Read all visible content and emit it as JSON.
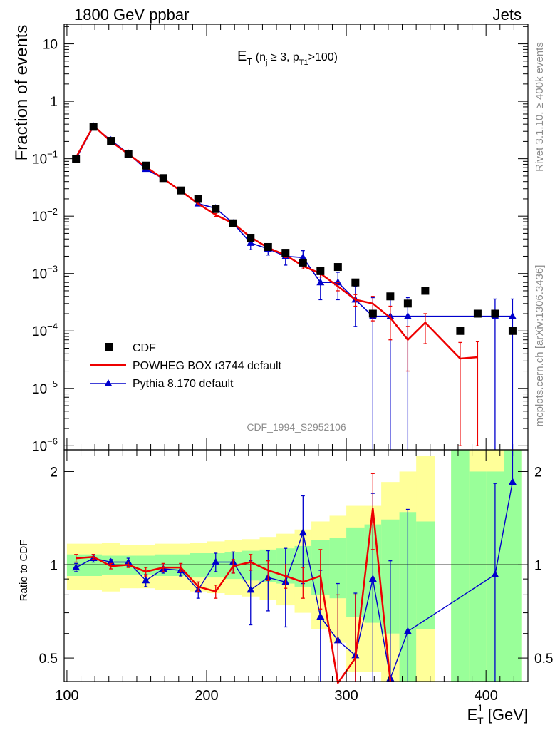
{
  "header": {
    "left": "1800 GeV ppbar",
    "right": "Jets",
    "side_top": "Rivet 3.1.10, ≥ 400k events",
    "side_bottom": "mcplots.cern.ch [arXiv:1306.3436]",
    "analysis_id": "CDF_1994_S2952106"
  },
  "colors": {
    "data": "#000000",
    "powheg": "#ee0000",
    "pythia": "#0000cc",
    "band_inner": "#99ff99",
    "band_outer": "#ffff99"
  },
  "chart_data": [
    {
      "type": "scatter",
      "title": "E_T (n_j ≥ 3, p_T1 >100)",
      "title_parts": {
        "main": "E",
        "sub": "T",
        "paren_open": " (n",
        "nj_sub": "j",
        "cond": " ≥ 3, p",
        "pt_sub": "T1",
        "tail": ">100)"
      },
      "ylabel": "Fraction of events",
      "yscale": "log",
      "ylim": [
        8.5e-07,
        22
      ],
      "xlim": [
        98,
        430
      ],
      "yticks": [
        {
          "v": 10,
          "base": "10",
          "exp": ""
        },
        {
          "v": 1,
          "base": "1",
          "exp": ""
        },
        {
          "v": 0.1,
          "base": "10",
          "exp": "−1"
        },
        {
          "v": 0.01,
          "base": "10",
          "exp": "−2"
        },
        {
          "v": 0.001,
          "base": "10",
          "exp": "−3"
        },
        {
          "v": 0.0001,
          "base": "10",
          "exp": "−4"
        },
        {
          "v": 1e-05,
          "base": "10",
          "exp": "−5"
        },
        {
          "v": 1e-06,
          "base": "10",
          "exp": "−6"
        }
      ],
      "legend": [
        {
          "key": "data",
          "label": "CDF"
        },
        {
          "key": "powheg",
          "label": "POWHEG BOX r3744 default"
        },
        {
          "key": "pythia",
          "label": "Pythia 8.170 default"
        }
      ],
      "series": [
        {
          "name": "CDF",
          "x": [
            106.5,
            119,
            131.5,
            144,
            156.5,
            169,
            181.5,
            194,
            206.5,
            219,
            231.5,
            244,
            256.5,
            269,
            281.5,
            294,
            306.5,
            319,
            331.5,
            344,
            356.5,
            381.5,
            394,
            406.5,
            419
          ],
          "y": [
            0.1,
            0.36,
            0.205,
            0.12,
            0.076,
            0.046,
            0.028,
            0.02,
            0.0133,
            0.0075,
            0.0042,
            0.0029,
            0.0023,
            0.00155,
            0.0011,
            0.0013,
            0.0007,
            0.0002,
            0.0004,
            0.0003,
            0.0005,
            0.0001,
            0.0002,
            0.0002,
            0.0001
          ]
        },
        {
          "name": "POWHEG BOX r3744 default",
          "x": [
            106.5,
            119,
            131.5,
            144,
            156.5,
            169,
            181.5,
            194,
            206.5,
            219,
            231.5,
            244,
            256.5,
            269,
            281.5,
            294,
            306.5,
            319,
            331.5,
            344,
            356.5,
            381.5,
            394
          ],
          "y": [
            0.105,
            0.375,
            0.2,
            0.12,
            0.072,
            0.045,
            0.0275,
            0.0165,
            0.0105,
            0.0075,
            0.0043,
            0.0028,
            0.0021,
            0.00135,
            0.001,
            0.0006,
            0.00035,
            0.0003,
            0.00017,
            7e-05,
            0.00014,
            3.3e-05,
            3.5e-05
          ],
          "err_lo": [
            0.003,
            0.005,
            0.004,
            0.003,
            0.002,
            0.0015,
            0.001,
            0.0008,
            0.0006,
            0.0004,
            0.0003,
            0.00025,
            0.0002,
            0.00015,
            0.00013,
            0.0001,
            8e-05,
            0.00015,
            0.0001,
            5e-05,
            8e-05,
            3.2e-05,
            3.4e-05
          ],
          "err_hi": [
            0.003,
            0.005,
            0.004,
            0.003,
            0.002,
            0.0015,
            0.001,
            0.0008,
            0.0006,
            0.0004,
            0.0003,
            0.00025,
            0.0002,
            0.00015,
            0.00013,
            0.0001,
            8e-05,
            0.0001,
            0.0001,
            5e-05,
            6e-05,
            3e-05,
            3e-05
          ]
        },
        {
          "name": "Pythia 8.170 default",
          "x": [
            106.5,
            119,
            131.5,
            144,
            156.5,
            169,
            181.5,
            194,
            206.5,
            219,
            231.5,
            244,
            256.5,
            269,
            281.5,
            294,
            306.5,
            319,
            331.5,
            344,
            406.5,
            419
          ],
          "y": [
            0.1,
            0.365,
            0.21,
            0.123,
            0.066,
            0.045,
            0.027,
            0.0165,
            0.0137,
            0.0075,
            0.0034,
            0.0027,
            0.002,
            0.0019,
            0.0007,
            0.0007,
            0.00035,
            0.00018,
            0.00018,
            0.00018,
            0.00018,
            0.00018
          ],
          "err_lo": [
            0.003,
            0.006,
            0.004,
            0.003,
            0.002,
            0.0015,
            0.001,
            0.001,
            0.0009,
            0.0006,
            0.0008,
            0.0006,
            0.0006,
            0.0006,
            0.00035,
            0.00035,
            0.00023,
            0.00017999,
            0.00017999,
            0.00017999,
            0.00017999,
            0.00017999
          ],
          "err_hi": [
            0.003,
            0.006,
            0.004,
            0.003,
            0.002,
            0.0015,
            0.001,
            0.001,
            0.0009,
            0.0006,
            0.0008,
            0.0006,
            0.0006,
            0.0006,
            0.00035,
            0.00035,
            0.00025,
            0.0002,
            0.0002,
            0.0002,
            0.00018,
            0.00018
          ]
        }
      ]
    },
    {
      "type": "line",
      "ylabel": "Ratio to CDF",
      "xlabel": "E_T^1 [GeV]",
      "xlabel_parts": {
        "main": "E",
        "sub": "T",
        "sup": "1",
        "unit": " [GeV]"
      },
      "yscale": "log",
      "ylim": [
        0.42,
        2.35
      ],
      "xlim": [
        98,
        430
      ],
      "reference_line": 1,
      "xticks": [
        100,
        200,
        300,
        400
      ],
      "yticks": [
        {
          "v": 2,
          "label": "2"
        },
        {
          "v": 1,
          "label": "1"
        },
        {
          "v": 0.5,
          "label": "0.5"
        }
      ],
      "bands": {
        "edges": [
          100,
          113,
          125,
          138,
          150,
          163,
          175,
          188,
          200,
          213,
          225,
          238,
          250,
          263,
          275,
          288,
          300,
          313,
          325,
          338,
          350,
          363,
          375,
          388,
          400,
          413,
          425
        ],
        "inner_lo": [
          0.92,
          0.92,
          0.93,
          0.93,
          0.93,
          0.92,
          0.92,
          0.91,
          0.91,
          0.9,
          0.89,
          0.88,
          0.87,
          0.85,
          0.8,
          0.78,
          0.68,
          0.65,
          0.6,
          0.42,
          0.62,
          null,
          0.42,
          0.42,
          0.42,
          0.42
        ],
        "inner_hi": [
          1.08,
          1.08,
          1.07,
          1.07,
          1.07,
          1.08,
          1.08,
          1.09,
          1.09,
          1.1,
          1.11,
          1.12,
          1.13,
          1.15,
          1.2,
          1.22,
          1.32,
          1.35,
          1.4,
          1.48,
          1.38,
          null,
          2.35,
          2.0,
          2.0,
          2.35
        ],
        "outer_lo": [
          0.83,
          0.83,
          0.82,
          0.84,
          0.84,
          0.83,
          0.83,
          0.82,
          0.81,
          0.8,
          0.79,
          0.77,
          0.74,
          0.7,
          0.62,
          0.56,
          0.45,
          0.45,
          0.42,
          0.42,
          0.42,
          null,
          0.42,
          0.42,
          0.42,
          0.42
        ],
        "outer_hi": [
          1.17,
          1.17,
          1.18,
          1.16,
          1.16,
          1.17,
          1.17,
          1.18,
          1.19,
          1.2,
          1.21,
          1.23,
          1.26,
          1.3,
          1.38,
          1.44,
          1.55,
          1.55,
          1.85,
          2.0,
          2.25,
          null,
          2.35,
          2.35,
          2.35,
          2.35
        ]
      },
      "series": [
        {
          "name": "POWHEG BOX r3744 default",
          "x": [
            106.5,
            119,
            131.5,
            144,
            156.5,
            169,
            181.5,
            194,
            206.5,
            219,
            231.5,
            244,
            256.5,
            269,
            281.5,
            294,
            306.5,
            319,
            331.5
          ],
          "y": [
            1.05,
            1.06,
            0.99,
            1.0,
            0.95,
            0.98,
            0.98,
            0.85,
            0.82,
            0.99,
            1.02,
            0.96,
            0.92,
            0.88,
            0.92,
            0.4,
            0.5,
            1.52,
            0.42
          ],
          "err_lo": [
            0.03,
            0.02,
            0.02,
            0.02,
            0.03,
            0.03,
            0.03,
            0.03,
            0.04,
            0.05,
            0.06,
            0.07,
            0.08,
            0.1,
            0.2,
            0.0,
            0.2,
            0.4,
            0.0
          ],
          "err_hi": [
            0.03,
            0.02,
            0.02,
            0.02,
            0.03,
            0.03,
            0.03,
            0.03,
            0.04,
            0.05,
            0.06,
            0.07,
            0.08,
            0.1,
            0.2,
            0.4,
            0.3,
            0.45,
            0.0
          ]
        },
        {
          "name": "Pythia 8.170 default",
          "x": [
            106.5,
            119,
            131.5,
            144,
            156.5,
            169,
            181.5,
            194,
            206.5,
            219,
            231.5,
            244,
            256.5,
            269,
            281.5,
            294,
            306.5,
            319,
            331.5,
            344,
            406.5,
            419
          ],
          "y": [
            0.98,
            1.05,
            1.02,
            1.02,
            0.89,
            0.97,
            0.96,
            0.83,
            1.02,
            1.02,
            0.83,
            0.91,
            0.88,
            1.27,
            0.68,
            0.57,
            0.51,
            0.9,
            0.43,
            0.61,
            0.93,
            1.85
          ],
          "err_lo": [
            0.03,
            0.03,
            0.02,
            0.03,
            0.04,
            0.03,
            0.04,
            0.05,
            0.07,
            0.08,
            0.19,
            0.2,
            0.25,
            0.4,
            0.28,
            0.15,
            0.09,
            0.48,
            0.01,
            0.19,
            0.51,
            0.0
          ],
          "err_hi": [
            0.03,
            0.03,
            0.02,
            0.03,
            0.04,
            0.03,
            0.04,
            0.05,
            0.07,
            0.08,
            0.2,
            0.2,
            0.25,
            0.4,
            0.28,
            0.3,
            0.3,
            0.8,
            0.6,
            0.9,
            0.9,
            0.5
          ]
        }
      ]
    }
  ]
}
